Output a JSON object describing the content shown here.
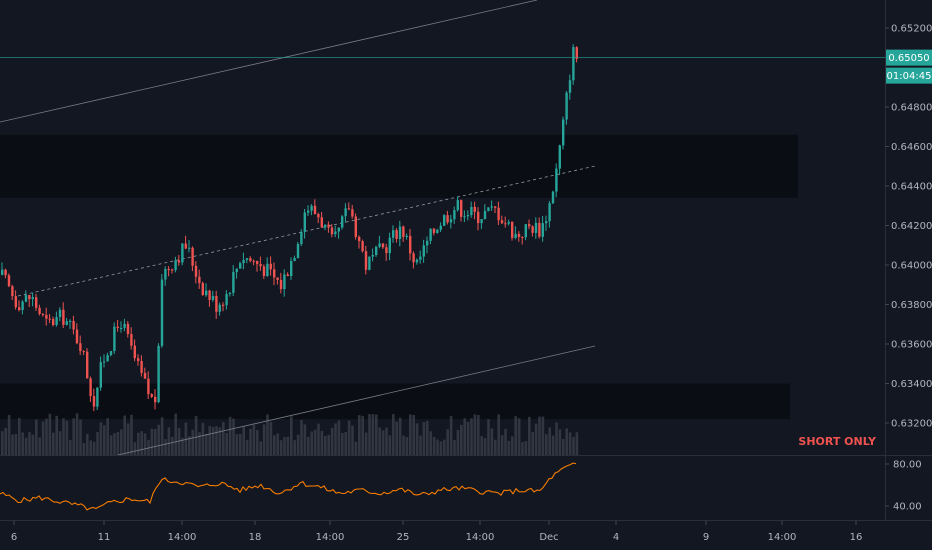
{
  "chart_data": {
    "type": "candlestick",
    "price_axis": {
      "ticks": [
        "0.65200",
        "0.65050",
        "0.64800",
        "0.64600",
        "0.64400",
        "0.64200",
        "0.64000",
        "0.63800",
        "0.63600",
        "0.63400",
        "0.63200"
      ],
      "ylim": [
        0.6312,
        0.6535
      ]
    },
    "current_price": {
      "label": "0.65050",
      "value": 0.6505,
      "color": "#26a69a"
    },
    "countdown": "01:04:45",
    "time_axis": {
      "labels": [
        "6",
        "11",
        "14:00",
        "18",
        "14:00",
        "25",
        "14:00",
        "Dec",
        "4",
        "9",
        "14:00",
        "16"
      ]
    },
    "zones": [
      {
        "from": 0.6434,
        "to": 0.6466
      },
      {
        "from": 0.6322,
        "to": 0.634
      }
    ],
    "annotation": "SHORT ONLY",
    "oscillator": {
      "ticks": [
        "80.00",
        "40.00"
      ],
      "ylim": [
        30,
        90
      ]
    },
    "colors": {
      "up": "#26a69a",
      "down": "#ef5350",
      "oscillator_line": "#f57c00",
      "background": "#131722"
    }
  }
}
